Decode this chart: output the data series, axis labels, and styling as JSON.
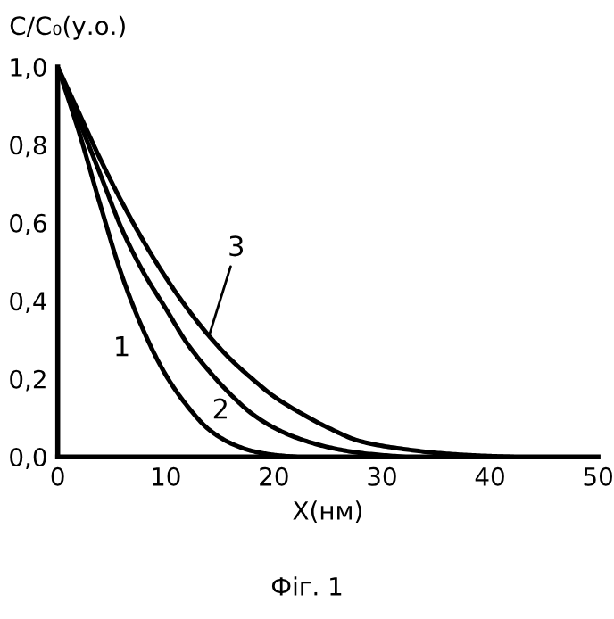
{
  "chart_data": {
    "type": "line",
    "xlabel": "X(нм)",
    "ylabel": "C/C₀(у.о.)",
    "xlim": [
      0,
      50
    ],
    "xticks": [
      0,
      10,
      20,
      30,
      40,
      50
    ],
    "ylim": [
      0,
      1.0
    ],
    "yticks": [
      {
        "value": 0,
        "label": "0,0"
      },
      {
        "value": 0.2,
        "label": "0,2"
      },
      {
        "value": 0.4,
        "label": "0,4"
      },
      {
        "value": 0.6,
        "label": "0,6"
      },
      {
        "value": 0.8,
        "label": "0,8"
      },
      {
        "value": 1.0,
        "label": "1,0"
      }
    ],
    "grid": false,
    "legend": false,
    "marker": "none",
    "line_style": "solid",
    "series": [
      {
        "name": "1",
        "color": "#000000",
        "x": [
          0,
          2,
          4,
          6,
          8,
          10,
          12,
          14,
          16,
          18,
          20,
          22
        ],
        "values": [
          1.0,
          0.83,
          0.64,
          0.46,
          0.32,
          0.21,
          0.13,
          0.07,
          0.035,
          0.015,
          0.005,
          0.0
        ]
      },
      {
        "name": "2",
        "color": "#000000",
        "x": [
          0,
          2,
          4,
          6,
          8,
          10,
          12,
          14,
          16,
          18,
          20,
          22,
          25,
          28,
          32
        ],
        "values": [
          1.0,
          0.86,
          0.72,
          0.58,
          0.47,
          0.38,
          0.29,
          0.22,
          0.16,
          0.11,
          0.075,
          0.05,
          0.025,
          0.01,
          0.0
        ]
      },
      {
        "name": "3",
        "color": "#000000",
        "x": [
          0,
          2,
          4,
          6,
          8,
          10,
          12,
          14,
          16,
          18,
          20,
          22,
          25,
          28,
          32,
          36,
          40,
          42
        ],
        "values": [
          1.0,
          0.88,
          0.76,
          0.65,
          0.55,
          0.46,
          0.38,
          0.31,
          0.25,
          0.2,
          0.155,
          0.12,
          0.075,
          0.04,
          0.02,
          0.008,
          0.002,
          0.0
        ]
      }
    ],
    "annotations": [
      "Фіг. 1"
    ]
  }
}
